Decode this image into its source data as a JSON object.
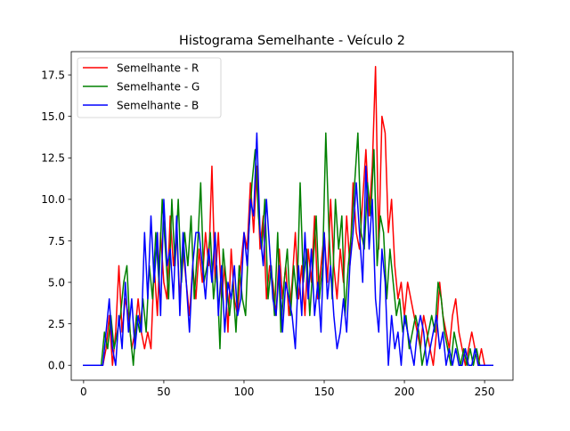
{
  "chart_data": {
    "type": "line",
    "title": "Histograma Semelhante - Veículo 2",
    "xlabel": "",
    "ylabel": "",
    "xlim": [
      -7.7,
      267.7
    ],
    "ylim": [
      -0.9,
      18.9
    ],
    "xticks": [
      0,
      50,
      100,
      150,
      200,
      250
    ],
    "xtick_labels": [
      "0",
      "50",
      "100",
      "150",
      "200",
      "250"
    ],
    "yticks": [
      0,
      2.5,
      5,
      7.5,
      10,
      12.5,
      15,
      17.5
    ],
    "ytick_labels": [
      "0.0",
      "2.5",
      "5.0",
      "7.5",
      "10.0",
      "12.5",
      "15.0",
      "17.5"
    ],
    "legend_position": "upper left",
    "series": [
      {
        "name": "Semelhante - R",
        "color": "#ff0000",
        "x": [
          0,
          12,
          14,
          16,
          18,
          20,
          22,
          24,
          26,
          28,
          30,
          32,
          34,
          36,
          38,
          40,
          42,
          44,
          46,
          48,
          50,
          52,
          54,
          56,
          58,
          60,
          62,
          64,
          66,
          68,
          70,
          72,
          74,
          76,
          78,
          80,
          82,
          84,
          86,
          88,
          90,
          92,
          94,
          96,
          98,
          100,
          102,
          104,
          106,
          108,
          110,
          112,
          114,
          116,
          118,
          120,
          122,
          124,
          126,
          128,
          130,
          132,
          134,
          136,
          138,
          140,
          142,
          144,
          146,
          148,
          150,
          152,
          154,
          156,
          158,
          160,
          162,
          164,
          166,
          168,
          170,
          172,
          174,
          176,
          178,
          180,
          182,
          184,
          186,
          188,
          190,
          192,
          194,
          196,
          198,
          200,
          202,
          204,
          206,
          208,
          210,
          212,
          214,
          216,
          218,
          220,
          222,
          224,
          226,
          228,
          230,
          232,
          234,
          236,
          238,
          240,
          242,
          244,
          246,
          248,
          250,
          255
        ],
        "values": [
          0,
          0,
          1,
          3,
          0,
          2,
          6,
          2,
          4,
          3,
          1,
          2,
          4,
          2,
          1,
          2,
          1,
          6,
          3,
          8,
          5,
          4,
          9,
          6,
          8,
          4,
          7,
          5,
          3,
          6,
          4,
          7,
          5,
          8,
          6,
          12,
          5,
          8,
          4,
          6,
          2,
          7,
          4,
          3,
          6,
          8,
          7,
          11,
          8,
          12,
          7,
          9,
          4,
          6,
          5,
          3,
          7,
          4,
          6,
          3,
          5,
          8,
          4,
          6,
          3,
          7,
          5,
          9,
          4,
          6,
          8,
          5,
          10,
          6,
          4,
          7,
          5,
          9,
          6,
          11,
          8,
          7,
          10,
          13,
          9,
          12,
          18,
          7,
          15,
          14,
          8,
          10,
          6,
          4,
          5,
          3,
          5,
          4,
          3,
          2,
          1,
          3,
          2,
          1,
          0,
          2,
          5,
          3,
          2,
          1,
          3,
          4,
          2,
          1,
          0,
          1,
          2,
          1,
          0,
          1,
          0,
          0
        ]
      },
      {
        "name": "Semelhante - G",
        "color": "#008000",
        "x": [
          0,
          11,
          13,
          15,
          17,
          19,
          21,
          23,
          25,
          27,
          29,
          31,
          33,
          35,
          37,
          39,
          41,
          43,
          45,
          47,
          49,
          51,
          53,
          55,
          57,
          59,
          61,
          63,
          65,
          67,
          69,
          71,
          73,
          75,
          77,
          79,
          81,
          83,
          85,
          87,
          89,
          91,
          93,
          95,
          97,
          99,
          101,
          103,
          105,
          107,
          109,
          111,
          113,
          115,
          117,
          119,
          121,
          123,
          125,
          127,
          129,
          131,
          133,
          135,
          137,
          139,
          141,
          143,
          145,
          147,
          149,
          151,
          153,
          155,
          157,
          159,
          161,
          163,
          165,
          167,
          169,
          171,
          173,
          175,
          177,
          179,
          181,
          183,
          185,
          187,
          189,
          191,
          193,
          195,
          197,
          199,
          201,
          203,
          205,
          207,
          209,
          211,
          213,
          215,
          217,
          219,
          221,
          223,
          225,
          227,
          229,
          231,
          233,
          235,
          237,
          239,
          241,
          243,
          245,
          247,
          249,
          255
        ],
        "values": [
          0,
          0,
          2,
          1,
          3,
          1,
          2,
          3,
          5,
          6,
          2,
          0,
          3,
          2,
          4,
          2,
          6,
          4,
          8,
          5,
          10,
          7,
          4,
          10,
          6,
          10,
          5,
          8,
          6,
          9,
          4,
          7,
          11,
          5,
          6,
          8,
          4,
          6,
          1,
          7,
          5,
          3,
          5,
          2,
          6,
          4,
          3,
          8,
          11,
          13,
          9,
          7,
          10,
          4,
          6,
          3,
          8,
          2,
          5,
          7,
          3,
          6,
          4,
          11,
          5,
          7,
          3,
          6,
          9,
          4,
          6,
          14,
          8,
          4,
          10,
          7,
          9,
          3,
          6,
          8,
          11,
          14,
          8,
          7,
          11,
          9,
          13,
          6,
          9,
          8,
          4,
          7,
          5,
          3,
          4,
          2,
          3,
          1,
          2,
          3,
          2,
          0,
          1,
          2,
          3,
          2,
          5,
          4,
          2,
          1,
          0,
          2,
          1,
          0,
          1,
          0,
          1,
          0,
          1,
          0,
          0,
          0
        ]
      },
      {
        "name": "Semelhante - B",
        "color": "#0000ff",
        "x": [
          0,
          10,
          12,
          14,
          16,
          18,
          20,
          22,
          24,
          26,
          28,
          30,
          32,
          34,
          36,
          38,
          40,
          42,
          44,
          46,
          48,
          50,
          52,
          54,
          56,
          58,
          60,
          62,
          64,
          66,
          68,
          70,
          72,
          74,
          76,
          78,
          80,
          82,
          84,
          86,
          88,
          90,
          92,
          94,
          96,
          98,
          100,
          102,
          104,
          106,
          108,
          110,
          112,
          114,
          116,
          118,
          120,
          122,
          124,
          126,
          128,
          130,
          132,
          134,
          136,
          138,
          140,
          142,
          144,
          146,
          148,
          150,
          152,
          154,
          156,
          158,
          160,
          162,
          164,
          166,
          168,
          170,
          172,
          174,
          176,
          178,
          180,
          182,
          184,
          186,
          188,
          190,
          192,
          194,
          196,
          198,
          200,
          202,
          204,
          206,
          208,
          210,
          212,
          214,
          216,
          218,
          220,
          222,
          224,
          226,
          228,
          230,
          232,
          234,
          236,
          238,
          240,
          242,
          244,
          246,
          248,
          250,
          255
        ],
        "values": [
          0,
          0,
          0,
          2,
          4,
          1,
          0,
          3,
          1,
          5,
          2,
          4,
          1,
          3,
          2,
          8,
          4,
          9,
          5,
          8,
          3,
          10,
          6,
          7,
          4,
          9,
          3,
          8,
          5,
          2,
          6,
          8,
          8,
          6,
          4,
          7,
          5,
          8,
          3,
          6,
          2,
          5,
          4,
          6,
          3,
          4,
          8,
          6,
          10,
          9,
          14,
          8,
          6,
          10,
          7,
          4,
          3,
          6,
          2,
          5,
          4,
          3,
          1,
          6,
          3,
          8,
          4,
          7,
          3,
          5,
          2,
          8,
          4,
          6,
          3,
          1,
          2,
          4,
          2,
          6,
          8,
          11,
          8,
          5,
          12,
          7,
          10,
          4,
          2,
          7,
          5,
          0,
          3,
          1,
          2,
          0,
          3,
          2,
          1,
          0,
          2,
          3,
          2,
          0,
          1,
          2,
          3,
          1,
          2,
          0,
          1,
          0,
          1,
          0,
          0,
          1,
          0,
          0,
          1,
          0,
          0,
          0,
          0
        ]
      }
    ]
  }
}
